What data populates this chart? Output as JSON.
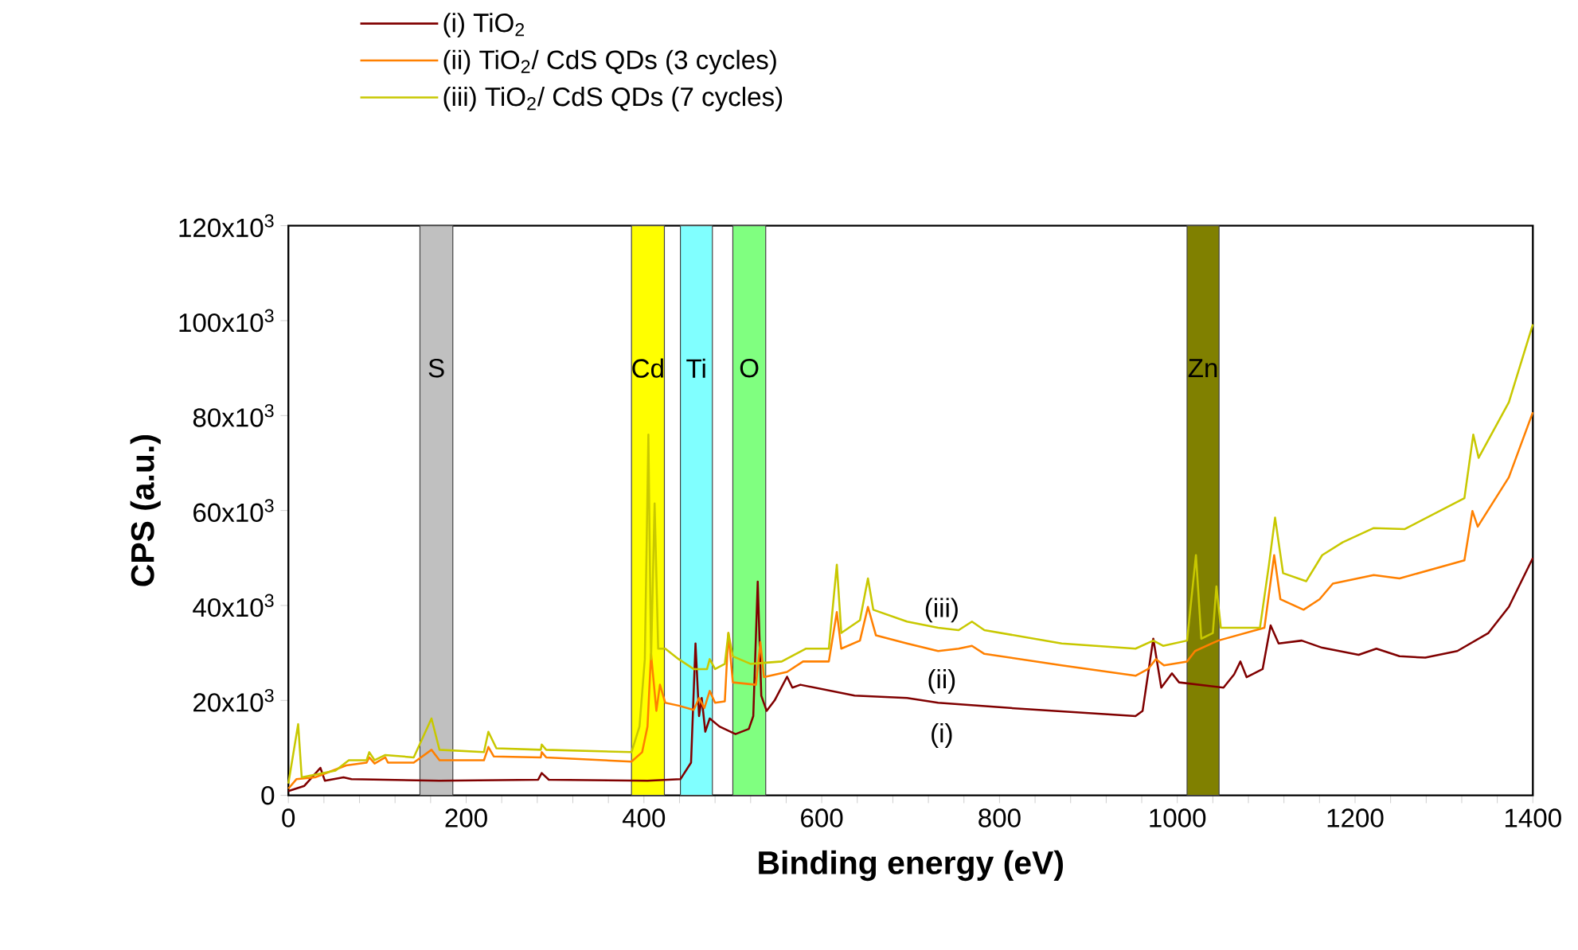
{
  "chart_data": {
    "type": "line",
    "xlabel": "Binding energy (eV)",
    "ylabel": "CPS (a.u.)",
    "xlim": [
      0,
      1400
    ],
    "ylim": [
      0,
      120000
    ],
    "xticks": [
      0,
      {
        "value": 40,
        "label": null
      },
      {
        "value": 80,
        "label": null
      },
      {
        "value": 120,
        "label": null
      },
      {
        "value": 160,
        "label": null
      },
      200,
      {
        "value": 240,
        "label": null
      },
      {
        "value": 280,
        "label": null
      },
      {
        "value": 320,
        "label": null
      },
      {
        "value": 360,
        "label": null
      },
      400,
      {
        "value": 440,
        "label": null
      },
      {
        "value": 480,
        "label": null
      },
      {
        "value": 520,
        "label": null
      },
      {
        "value": 560,
        "label": null
      },
      600,
      {
        "value": 640,
        "label": null
      },
      {
        "value": 680,
        "label": null
      },
      {
        "value": 720,
        "label": null
      },
      {
        "value": 760,
        "label": null
      },
      800,
      {
        "value": 840,
        "label": null
      },
      {
        "value": 880,
        "label": null
      },
      {
        "value": 920,
        "label": null
      },
      {
        "value": 960,
        "label": null
      },
      1000,
      {
        "value": 1040,
        "label": null
      },
      {
        "value": 1080,
        "label": null
      },
      {
        "value": 1120,
        "label": null
      },
      {
        "value": 1160,
        "label": null
      },
      1200,
      {
        "value": 1240,
        "label": null
      },
      {
        "value": 1280,
        "label": null
      },
      {
        "value": 1320,
        "label": null
      },
      {
        "value": 1360,
        "label": null
      },
      1400
    ],
    "yticks": [
      0,
      {
        "value": 20000,
        "label": "20x10$^{3}$"
      },
      {
        "value": 40000,
        "label": "40x10$^{3}$"
      },
      {
        "value": 60000,
        "label": "60x10$^{3}$"
      },
      {
        "value": 80000,
        "label": "80x10$^{3}$"
      },
      {
        "value": 100000,
        "label": "100x10$^{3}$"
      },
      {
        "value": 120000,
        "label": "120x10$^{3}$"
      }
    ],
    "legend": "top",
    "marker": "none",
    "line_style": "solid",
    "bands": [
      {
        "axis": "x",
        "from": 148,
        "to": 185,
        "label": "S",
        "color": "#c0c0c0"
      },
      {
        "axis": "x",
        "from": 386,
        "to": 423,
        "label": "Cd",
        "color": "#ffff00"
      },
      {
        "axis": "x",
        "from": 441,
        "to": 477,
        "label": "Ti",
        "color": "#80ffff"
      },
      {
        "axis": "x",
        "from": 500,
        "to": 537,
        "label": "O",
        "color": "#80ff80"
      },
      {
        "axis": "x",
        "from": 1011,
        "to": 1047,
        "label": "Zn",
        "color": "#808000"
      }
    ],
    "annotations": [
      "(iii)",
      "(ii)",
      "(i)"
    ],
    "series": [
      {
        "name": "(i) TiO$_{2}$",
        "color": "#800000",
        "x": [
          0,
          18,
          36,
          41,
          62,
          71,
          170,
          281,
          285,
          293,
          404,
          441,
          453,
          458,
          462,
          465,
          469,
          474,
          485,
          503,
          518,
          523,
          528,
          532,
          538,
          547,
          561,
          567,
          576,
          637,
          696,
          731,
          812,
          953,
          961,
          973,
          982,
          994,
          1002,
          1052,
          1064,
          1071,
          1078,
          1096,
          1105,
          1114,
          1140,
          1163,
          1204,
          1224,
          1250,
          1279,
          1315,
          1350,
          1373,
          1400
        ],
        "values": [
          900,
          2000,
          5800,
          3100,
          3800,
          3400,
          3100,
          3300,
          4700,
          3300,
          3100,
          3400,
          6900,
          32000,
          16700,
          20500,
          13400,
          16200,
          14500,
          12900,
          14000,
          16700,
          45000,
          21000,
          17800,
          20000,
          25000,
          22700,
          23300,
          21000,
          20500,
          19500,
          18400,
          16700,
          17800,
          33000,
          22700,
          25700,
          23800,
          22700,
          25500,
          28200,
          24900,
          26600,
          35800,
          32000,
          32600,
          31100,
          29600,
          30900,
          29300,
          29000,
          30400,
          34200,
          39700,
          50000
        ]
      },
      {
        "name": "(ii) TiO$_{2}$/ CdS QDs (3 cycles)",
        "color": "#ff8000",
        "x": [
          0,
          9,
          30,
          65,
          88,
          91,
          97,
          109,
          112,
          141,
          161,
          170,
          220,
          225,
          231,
          284,
          285,
          290,
          386,
          398,
          404,
          408,
          414,
          418,
          424,
          439,
          456,
          462,
          468,
          474,
          480,
          491,
          495,
          500,
          526,
          531,
          535,
          561,
          579,
          608,
          617,
          622,
          643,
          652,
          661,
          696,
          731,
          754,
          769,
          783,
          870,
          953,
          967,
          976,
          985,
          1011,
          1020,
          1046,
          1098,
          1109,
          1116,
          1142,
          1160,
          1175,
          1221,
          1250,
          1323,
          1332,
          1338,
          1373,
          1400
        ],
        "values": [
          1400,
          3400,
          3800,
          6300,
          6900,
          8000,
          6700,
          8000,
          6900,
          6900,
          9600,
          7400,
          7400,
          10200,
          8200,
          8000,
          9100,
          8000,
          7100,
          9100,
          14500,
          29800,
          17800,
          23300,
          19500,
          18900,
          18000,
          20500,
          18400,
          22000,
          19500,
          19800,
          34200,
          23800,
          23300,
          32300,
          24900,
          26000,
          28200,
          28200,
          38600,
          30900,
          32600,
          39700,
          33700,
          32000,
          30400,
          30900,
          31500,
          29800,
          27400,
          25200,
          26600,
          28700,
          27400,
          28200,
          30400,
          32600,
          35300,
          50600,
          41300,
          39100,
          41300,
          44600,
          46400,
          45700,
          49500,
          59900,
          56600,
          67000,
          80700
        ]
      },
      {
        "name": "(iii) TiO$_{2}$/ CdS QDs (7 cycles)",
        "color": "#c8c800",
        "x": [
          0,
          11,
          15,
          53,
          68,
          88,
          91,
          97,
          109,
          141,
          161,
          170,
          220,
          225,
          234,
          284,
          285,
          290,
          386,
          395,
          401,
          405,
          408,
          412,
          416,
          424,
          439,
          456,
          471,
          474,
          480,
          491,
          495,
          500,
          520,
          555,
          582,
          608,
          617,
          622,
          643,
          652,
          658,
          696,
          731,
          754,
          769,
          783,
          870,
          953,
          973,
          984,
          1011,
          1021,
          1027,
          1040,
          1044,
          1049,
          1093,
          1103,
          1110,
          1119,
          1145,
          1163,
          1186,
          1221,
          1256,
          1323,
          1333,
          1339,
          1373,
          1400
        ],
        "values": [
          2500,
          15000,
          3800,
          5200,
          7400,
          7400,
          9100,
          7400,
          8500,
          8000,
          16200,
          9600,
          9100,
          13400,
          9900,
          9600,
          10700,
          9600,
          9100,
          14500,
          28700,
          76000,
          28700,
          61500,
          30900,
          30900,
          28700,
          26600,
          26600,
          28700,
          26600,
          27700,
          34200,
          29300,
          27700,
          28200,
          30900,
          30900,
          48600,
          34200,
          36900,
          45700,
          39100,
          36600,
          35300,
          34800,
          36600,
          34800,
          32000,
          30900,
          32600,
          31500,
          32600,
          50600,
          33000,
          34200,
          44000,
          35300,
          35300,
          48400,
          58500,
          46800,
          45100,
          50600,
          53300,
          56300,
          56100,
          62600,
          76000,
          71100,
          82800,
          99200
        ]
      }
    ]
  }
}
